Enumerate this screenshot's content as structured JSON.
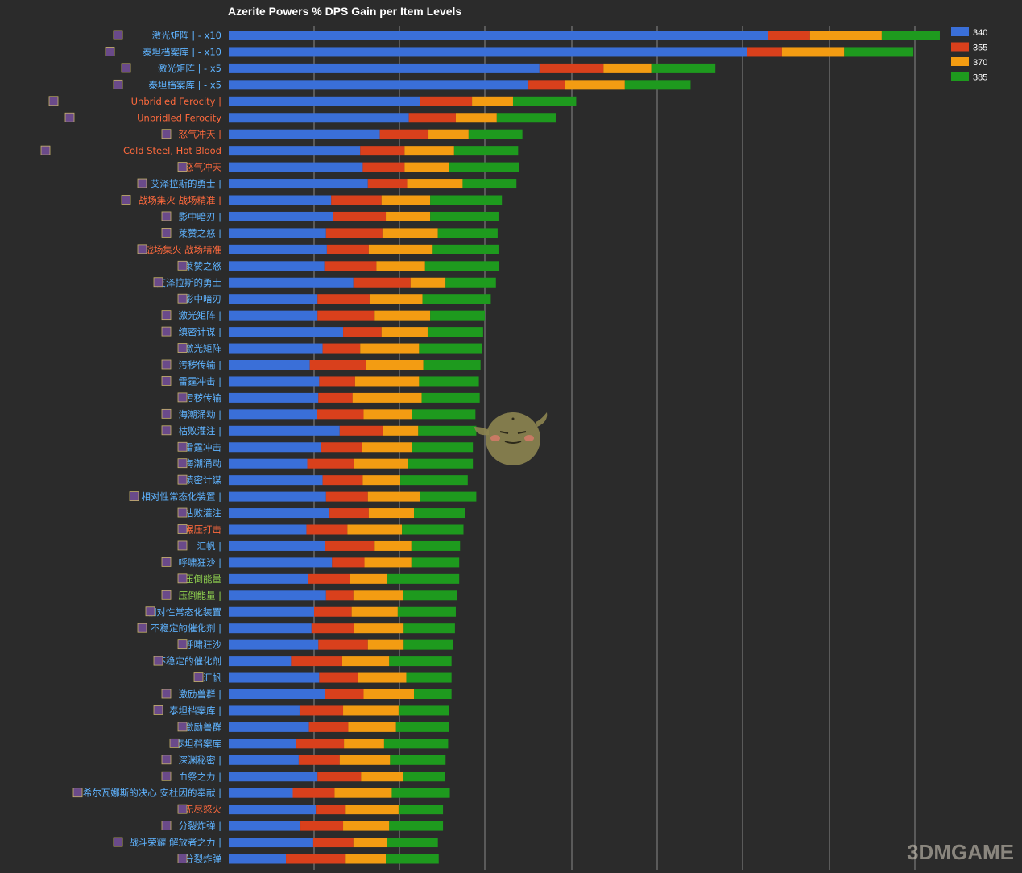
{
  "chart_data": {
    "type": "bar",
    "orientation": "horizontal",
    "stacked": true,
    "title": "Azerite Powers % DPS Gain per Item Levels",
    "xlabel": "",
    "ylabel": "",
    "xlim": [
      0,
      8.35
    ],
    "grid": true,
    "legend_position": "top-right",
    "categories": [
      "激光矩阵 | - x10",
      "泰坦档案库 | - x10",
      "激光矩阵 | - x5",
      "泰坦档案库 | - x5",
      "Unbridled Ferocity |",
      "Unbridled Ferocity",
      "怒气冲天 |",
      "Cold Steel, Hot Blood",
      "怒气冲天",
      "艾泽拉斯的勇士 |",
      "战场集火 战场精准 |",
      "影中暗刃 |",
      "莱赞之怒 |",
      "战场集火 战场精准",
      "莱赞之怒",
      "艾泽拉斯的勇士",
      "影中暗刃",
      "激光矩阵 |",
      "缜密计谋 |",
      "激光矩阵",
      "污秽传输 |",
      "雷霆冲击 |",
      "污秽传输",
      "海潮涌动 |",
      "枯败灌注 |",
      "雷霆冲击",
      "海潮涌动",
      "缜密计谋",
      "相对性常态化装置 |",
      "枯败灌注",
      "碾压打击",
      "汇帆 |",
      "呼啸狂沙 |",
      "压倒能量",
      "压倒能量 |",
      "相对性常态化装置",
      "不稳定的催化剂 |",
      "呼啸狂沙",
      "不稳定的催化剂",
      "汇帆",
      "激励兽群 |",
      "泰坦档案库 |",
      "激励兽群",
      "泰坦档案库",
      "深渊秘密 |",
      "血祭之力 |",
      "希尔瓦娜斯的决心 安杜因的奉献 |",
      "无尽怒火",
      "分裂炸弹 |",
      "战斗荣耀 解放者之力 |",
      "分裂炸弹"
    ],
    "label_colors": [
      "#5fb3ff",
      "#5fb3ff",
      "#5fb3ff",
      "#5fb3ff",
      "#ff6a3d",
      "#ff6a3d",
      "#ff6a3d",
      "#ff6a3d",
      "#ff6a3d",
      "#5fb3ff",
      "#ff6a3d",
      "#5fb3ff",
      "#5fb3ff",
      "#ff6a3d",
      "#5fb3ff",
      "#5fb3ff",
      "#5fb3ff",
      "#5fb3ff",
      "#5fb3ff",
      "#5fb3ff",
      "#5fb3ff",
      "#5fb3ff",
      "#5fb3ff",
      "#5fb3ff",
      "#5fb3ff",
      "#5fb3ff",
      "#5fb3ff",
      "#5fb3ff",
      "#5fb3ff",
      "#5fb3ff",
      "#ff6a3d",
      "#5fb3ff",
      "#5fb3ff",
      "#8fd14f",
      "#8fd14f",
      "#5fb3ff",
      "#5fb3ff",
      "#5fb3ff",
      "#5fb3ff",
      "#5fb3ff",
      "#5fb3ff",
      "#5fb3ff",
      "#5fb3ff",
      "#5fb3ff",
      "#5fb3ff",
      "#5fb3ff",
      "#5fb3ff",
      "#ff6a3d",
      "#5fb3ff",
      "#5fb3ff",
      "#5fb3ff"
    ],
    "series": [
      {
        "name": "340",
        "color": "#3a6fd8",
        "values": [
          6.32,
          6.07,
          3.64,
          3.51,
          2.24,
          2.11,
          1.77,
          1.54,
          1.57,
          1.63,
          1.2,
          1.22,
          1.14,
          1.15,
          1.12,
          1.46,
          1.04,
          1.04,
          1.34,
          1.1,
          0.95,
          1.06,
          1.05,
          1.03,
          1.3,
          1.08,
          0.92,
          1.1,
          1.14,
          1.18,
          0.91,
          1.13,
          1.21,
          0.93,
          1.14,
          1.0,
          0.97,
          1.05,
          0.73,
          1.06,
          1.13,
          0.83,
          0.94,
          0.79,
          0.82,
          1.04,
          0.75,
          1.02,
          0.84,
          0.99,
          0.67
        ]
      },
      {
        "name": "355",
        "color": "#d9401c",
        "values": [
          0.49,
          0.41,
          0.75,
          0.43,
          0.61,
          0.55,
          0.57,
          0.52,
          0.49,
          0.46,
          0.59,
          0.62,
          0.66,
          0.49,
          0.61,
          0.67,
          0.61,
          0.67,
          0.45,
          0.44,
          0.66,
          0.42,
          0.4,
          0.55,
          0.51,
          0.48,
          0.55,
          0.47,
          0.49,
          0.46,
          0.48,
          0.58,
          0.38,
          0.49,
          0.32,
          0.44,
          0.5,
          0.58,
          0.6,
          0.45,
          0.45,
          0.51,
          0.46,
          0.56,
          0.48,
          0.51,
          0.49,
          0.35,
          0.5,
          0.47,
          0.7
        ]
      },
      {
        "name": "370",
        "color": "#f39c12",
        "values": [
          0.84,
          0.73,
          0.56,
          0.7,
          0.48,
          0.48,
          0.47,
          0.58,
          0.52,
          0.65,
          0.57,
          0.52,
          0.65,
          0.75,
          0.57,
          0.41,
          0.62,
          0.65,
          0.54,
          0.69,
          0.67,
          0.75,
          0.81,
          0.57,
          0.41,
          0.59,
          0.63,
          0.44,
          0.61,
          0.53,
          0.64,
          0.43,
          0.55,
          0.43,
          0.58,
          0.54,
          0.58,
          0.42,
          0.55,
          0.57,
          0.59,
          0.65,
          0.56,
          0.47,
          0.59,
          0.49,
          0.67,
          0.62,
          0.54,
          0.39,
          0.47
        ]
      },
      {
        "name": "385",
        "color": "#1e9a1e",
        "values": [
          0.68,
          0.81,
          0.75,
          0.77,
          0.74,
          0.69,
          0.63,
          0.75,
          0.82,
          0.63,
          0.84,
          0.8,
          0.7,
          0.77,
          0.87,
          0.59,
          0.8,
          0.64,
          0.65,
          0.74,
          0.67,
          0.7,
          0.68,
          0.74,
          0.68,
          0.71,
          0.76,
          0.79,
          0.66,
          0.6,
          0.72,
          0.57,
          0.56,
          0.85,
          0.63,
          0.68,
          0.6,
          0.58,
          0.73,
          0.53,
          0.44,
          0.59,
          0.62,
          0.75,
          0.65,
          0.49,
          0.68,
          0.52,
          0.63,
          0.6,
          0.62
        ]
      }
    ]
  },
  "watermark": "3DMGAME"
}
